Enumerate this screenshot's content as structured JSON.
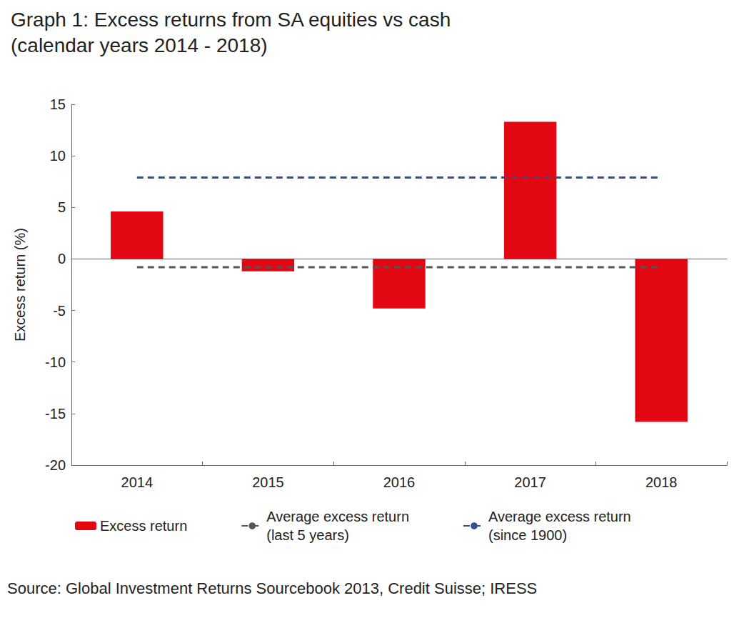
{
  "chart_data": {
    "type": "bar",
    "title": "Graph 1: Excess returns from SA equities vs cash",
    "subtitle": "(calendar years 2014 - 2018)",
    "y_label": "Excess return (%)",
    "source": "Source: Global Investment Returns Sourcebook 2013, Credit Suisse; IRESS",
    "categories": [
      "2014",
      "2015",
      "2016",
      "2017",
      "2018"
    ],
    "series": [
      {
        "name": "Excess return",
        "type": "bar",
        "color": "#e30613",
        "values": [
          4.6,
          -1.2,
          -4.8,
          13.3,
          -15.8
        ]
      },
      {
        "name": "Average excess return\n(last 5 years)",
        "type": "line",
        "line_style": "dashed",
        "color": "#555555",
        "values": [
          -0.8,
          -0.8,
          -0.8,
          -0.8,
          -0.8
        ]
      },
      {
        "name": "Average excess return\n(since 1900)",
        "type": "line",
        "line_style": "dashed",
        "color": "#2f4f8f",
        "values": [
          7.9,
          7.9,
          7.9,
          7.9,
          7.9
        ]
      }
    ],
    "ylim": [
      -20,
      15
    ],
    "yticks": [
      -20,
      -15,
      -10,
      -5,
      0,
      5,
      10,
      15
    ],
    "grid": false,
    "legend": "bottom"
  }
}
